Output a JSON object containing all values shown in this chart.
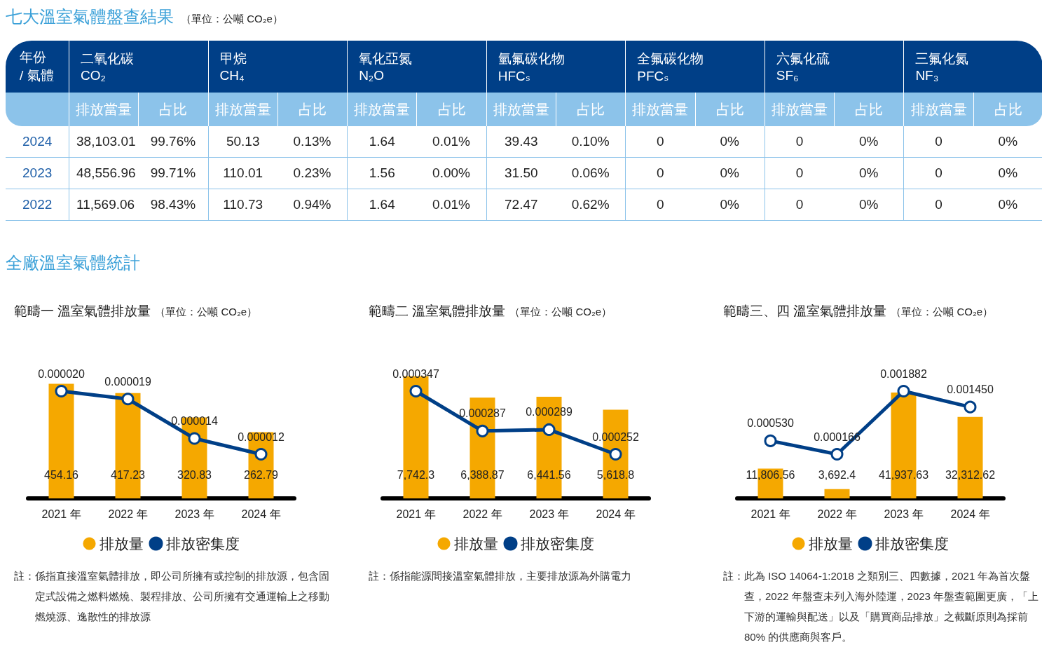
{
  "chart_data": [
    {
      "type": "other",
      "title": "七大溫室氣體盤查結果",
      "subtitle": "（單位：公噸 CO₂e）",
      "categories": [
        "二氧化碳\nCO₂",
        "甲烷\nCH₄",
        "氧化亞氮\nN₂O",
        "氫氟碳化物\nHFCₛ",
        "全氟碳化物\nPFCₛ",
        "六氟化硫\nSF₆",
        "三氟化氮\nNF₃"
      ],
      "y_categories": [
        "2024",
        "2023",
        "2022"
      ],
      "cell_labels": [
        [
          "38,103.01",
          "99.76%",
          "50.13",
          "0.13%",
          "1.64",
          "0.01%",
          "39.43",
          "0.10%",
          "0",
          "0%",
          "0",
          "0%",
          "0",
          "0%"
        ],
        [
          "48,556.96",
          "99.71%",
          "110.01",
          "0.23%",
          "1.56",
          "0.00%",
          "31.50",
          "0.06%",
          "0",
          "0%",
          "0",
          "0%",
          "0",
          "0%"
        ],
        [
          "11,569.06",
          "98.43%",
          "110.73",
          "0.94%",
          "1.64",
          "0.01%",
          "72.47",
          "0.62%",
          "0",
          "0%",
          "0",
          "0%",
          "0",
          "0%"
        ]
      ],
      "annotations": [
        "年份\n/ 氣體",
        "排放當量",
        "占比",
        "全廠溫室氣體統計"
      ]
    },
    {
      "type": "bar",
      "title": "範疇一  溫室氣體排放量",
      "subtitle": "（單位：公噸 CO₂e）",
      "categories": [
        "2021 年",
        "2022 年",
        "2023 年",
        "2024 年"
      ],
      "legend": "bottom",
      "marker": "circle",
      "grid": false,
      "series": [
        {
          "name": "排放量",
          "color": "#f5a800",
          "values": [
            454.16,
            417.23,
            320.83,
            262.79
          ],
          "value_labels": [
            "454.16",
            "417.23",
            "320.83",
            "262.79"
          ]
        },
        {
          "name": "排放密集度",
          "type": "line",
          "axis": "y2",
          "color": "#003f87",
          "values": [
            2e-05,
            1.9e-05,
            1.4e-05,
            1.2e-05
          ],
          "value_labels": [
            "0.000020",
            "0.000019",
            "0.000014",
            "0.000012"
          ]
        }
      ],
      "annotations": [
        "註：係指直接溫室氣體排放，即公司所擁有或控制的排放源，包含固定式設備之燃料燃燒、製程排放、公司所擁有交通運輸上之移動燃燒源、逸散性的排放源"
      ]
    },
    {
      "type": "bar",
      "title": "範疇二 溫室氣體排放量",
      "subtitle": "（單位：公噸 CO₂e）",
      "categories": [
        "2021 年",
        "2022 年",
        "2023 年",
        "2024 年"
      ],
      "legend": "bottom",
      "marker": "circle",
      "grid": false,
      "series": [
        {
          "name": "排放量",
          "color": "#f5a800",
          "values": [
            7742.3,
            6388.87,
            6441.56,
            5618.8
          ],
          "value_labels": [
            "7,742.3",
            "6,388.87",
            "6,441.56",
            "5,618.8"
          ]
        },
        {
          "name": "排放密集度",
          "type": "line",
          "axis": "y2",
          "color": "#003f87",
          "values": [
            0.000347,
            0.000287,
            0.000289,
            0.000252
          ],
          "value_labels": [
            "0.000347",
            "0.000287",
            "0.000289",
            "0.000252"
          ]
        }
      ],
      "annotations": [
        "註：係指能源間接溫室氣體排放，主要排放源為外購電力"
      ]
    },
    {
      "type": "bar",
      "title": "範疇三、四 溫室氣體排放量",
      "subtitle": "（單位：公噸 CO₂e）",
      "categories": [
        "2021 年",
        "2022 年",
        "2023 年",
        "2024 年"
      ],
      "legend": "bottom",
      "marker": "circle",
      "grid": false,
      "series": [
        {
          "name": "排放量",
          "color": "#f5a800",
          "values": [
            11806.56,
            3692.4,
            41937.63,
            32312.62
          ],
          "value_labels": [
            "11,806.56",
            "3,692.4",
            "41,937.63",
            "32,312.62"
          ]
        },
        {
          "name": "排放密集度",
          "type": "line",
          "axis": "y2",
          "color": "#003f87",
          "values": [
            0.00053,
            0.000166,
            0.001882,
            0.00145
          ],
          "value_labels": [
            "0.000530",
            "0.000166",
            "0.001882",
            "0.001450"
          ]
        }
      ],
      "annotations": [
        "註：此為 ISO 14064-1:2018 之類別三、四數據，2021 年為首次盤查，2022 年盤查未列入海外陸運，2023 年盤查範圍更廣，「上下游的運輸與配送」以及「購買商品排放」之截斷原則為採前 80% 的供應商與客戶。"
      ]
    }
  ]
}
